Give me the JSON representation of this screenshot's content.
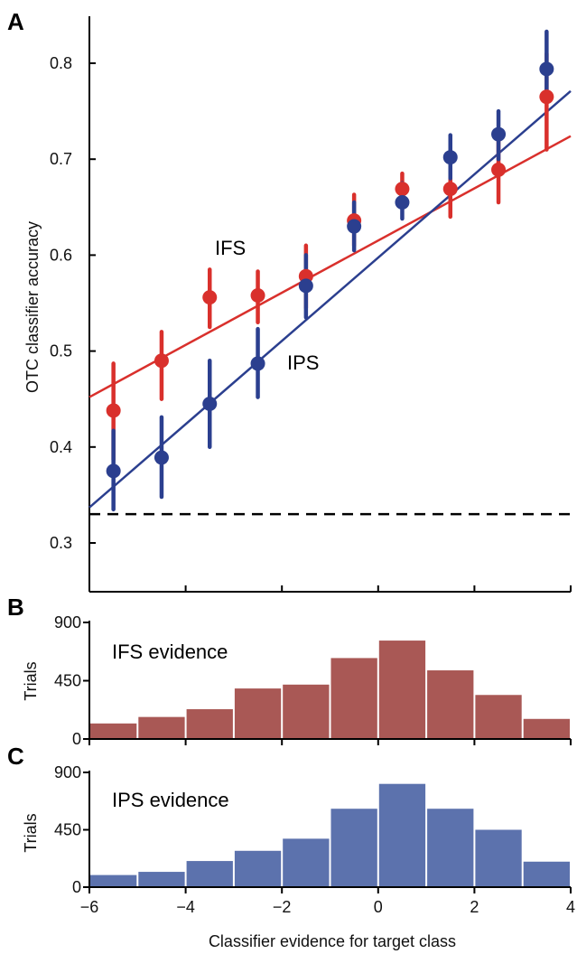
{
  "colors": {
    "ifs": "#d9302c",
    "ips": "#2b3f8f",
    "hist_ifs": "#a95855",
    "hist_ips": "#5c72ad",
    "axis": "#000000"
  },
  "chart_data": [
    {
      "panel": "A",
      "type": "scatter",
      "ylabel": "OTC classifier accuracy",
      "ylim": [
        0.25,
        0.86
      ],
      "xlim": [
        -6,
        4
      ],
      "yticks": [
        "0.3",
        "0.4",
        "0.5",
        "0.6",
        "0.7",
        "0.8"
      ],
      "chance_line": 0.33,
      "series": [
        {
          "name": "IFS",
          "x": [
            -5.5,
            -4.5,
            -3.5,
            -2.5,
            -1.5,
            -0.5,
            0.5,
            1.5,
            2.5,
            3.5
          ],
          "y": [
            0.438,
            0.49,
            0.556,
            0.558,
            0.578,
            0.636,
            0.669,
            0.669,
            0.689,
            0.765
          ],
          "err_low": [
            0.387,
            0.45,
            0.525,
            0.53,
            0.545,
            0.61,
            0.655,
            0.64,
            0.655,
            0.71
          ],
          "err_high": [
            0.487,
            0.52,
            0.585,
            0.583,
            0.61,
            0.663,
            0.685,
            0.7,
            0.72,
            0.81
          ],
          "fit": [
            [
              -6,
              0.452
            ],
            [
              4,
              0.724
            ]
          ]
        },
        {
          "name": "IPS",
          "x": [
            -5.5,
            -4.5,
            -3.5,
            -2.5,
            -1.5,
            -0.5,
            0.5,
            1.5,
            2.5,
            3.5
          ],
          "y": [
            0.375,
            0.389,
            0.445,
            0.487,
            0.568,
            0.63,
            0.655,
            0.702,
            0.726,
            0.794
          ],
          "err_low": [
            0.335,
            0.348,
            0.4,
            0.452,
            0.535,
            0.605,
            0.638,
            0.68,
            0.7,
            0.76
          ],
          "err_high": [
            0.417,
            0.431,
            0.49,
            0.523,
            0.6,
            0.655,
            0.675,
            0.725,
            0.75,
            0.833
          ],
          "fit": [
            [
              -6,
              0.337
            ],
            [
              4,
              0.771
            ]
          ]
        }
      ]
    },
    {
      "panel": "B",
      "type": "bar",
      "annotation": "IFS evidence",
      "ylabel": "Trials",
      "ylim": [
        0,
        900
      ],
      "yticks": [
        "0",
        "450",
        "900"
      ],
      "bin_edges": [
        -6,
        -5,
        -4,
        -3,
        -2,
        -1,
        0,
        1,
        2,
        3,
        4
      ],
      "values": [
        120,
        170,
        230,
        390,
        420,
        625,
        760,
        530,
        340,
        155
      ]
    },
    {
      "panel": "C",
      "type": "bar",
      "annotation": "IPS evidence",
      "ylabel": "Trials",
      "ylim": [
        0,
        900
      ],
      "yticks": [
        "0",
        "450",
        "900"
      ],
      "bin_edges": [
        -6,
        -5,
        -4,
        -3,
        -2,
        -1,
        0,
        1,
        2,
        3,
        4
      ],
      "values": [
        95,
        120,
        205,
        285,
        380,
        615,
        810,
        615,
        450,
        200
      ],
      "xlabel": "Classifier evidence for target class",
      "xticks": [
        "−6",
        "−4",
        "−2",
        "0",
        "2",
        "4"
      ]
    }
  ]
}
